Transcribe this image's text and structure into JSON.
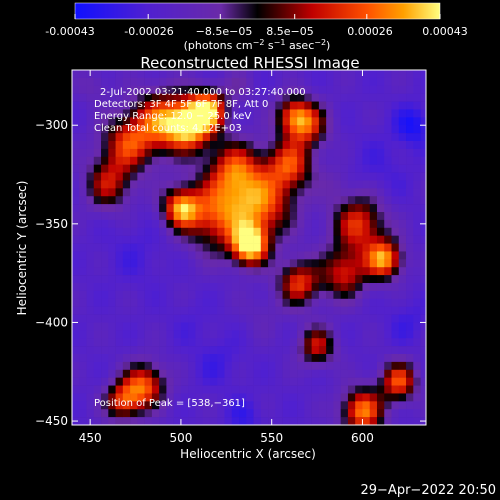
{
  "colorbar": {
    "ticks": [
      "-0.00043",
      "-0.00026",
      "−8.5e−05",
      "8.5e−05",
      "0.00026",
      "0.00043"
    ],
    "unit_main": "(photons cm",
    "unit_tail": " asec",
    "unit_sup1": "−2",
    "unit_s": " s",
    "unit_sup2": "−1",
    "unit_sup3": "−2",
    "unit_close": ")"
  },
  "annotations": {
    "time_range": "2-Jul-2002 03:21:40.000 to 03:27:40.000",
    "detectors": "Detectors: 3F 4F 5F 6F 7F 8F, Att 0",
    "energy": "Energy Range: 12.0 − 25.0 keV",
    "clean": "Clean     Total counts: 4.12E+03",
    "peak": "Position of Peak = [538,−361]"
  },
  "footer": {
    "timestamp": "29−Apr−2022 20:50"
  },
  "colors": {
    "background": "#000000",
    "text": "#ffffff",
    "lowest": "#1010ff",
    "highest": "#ffff80"
  },
  "chart_data": {
    "type": "heatmap",
    "title": "Reconstructed RHESSI Image",
    "xlabel": "Heliocentric X (arcsec)",
    "ylabel": "Heliocentric Y (arcsec)",
    "xlim": [
      440,
      635
    ],
    "ylim": [
      -452,
      -272
    ],
    "xticks": [
      450,
      500,
      550,
      600
    ],
    "yticks": [
      -300,
      -350,
      -400,
      -450
    ],
    "value_range": [
      -0.00043,
      0.00043
    ],
    "peak": {
      "x": 538,
      "y": -361
    },
    "grid": false,
    "blobs": [
      {
        "x": 538,
        "y": -361,
        "v": 0.00043,
        "r": 7
      },
      {
        "x": 545,
        "y": -340,
        "v": 0.00022,
        "r": 12
      },
      {
        "x": 520,
        "y": -345,
        "v": 0.00022,
        "r": 13
      },
      {
        "x": 505,
        "y": -300,
        "v": 0.00036,
        "r": 9
      },
      {
        "x": 515,
        "y": -292,
        "v": 0.0003,
        "r": 7
      },
      {
        "x": 488,
        "y": -298,
        "v": 0.00022,
        "r": 11
      },
      {
        "x": 470,
        "y": -310,
        "v": 0.00016,
        "r": 10
      },
      {
        "x": 460,
        "y": -330,
        "v": 0.00012,
        "r": 9
      },
      {
        "x": 500,
        "y": -342,
        "v": 0.00028,
        "r": 7
      },
      {
        "x": 530,
        "y": -322,
        "v": 0.00018,
        "r": 10
      },
      {
        "x": 560,
        "y": -320,
        "v": 0.0002,
        "r": 9
      },
      {
        "x": 562,
        "y": -295,
        "v": 0.00015,
        "r": 7
      },
      {
        "x": 598,
        "y": -350,
        "v": 0.0002,
        "r": 10
      },
      {
        "x": 612,
        "y": -368,
        "v": 0.00032,
        "r": 7
      },
      {
        "x": 590,
        "y": -375,
        "v": 0.00016,
        "r": 9
      },
      {
        "x": 565,
        "y": -380,
        "v": 0.0002,
        "r": 8
      },
      {
        "x": 575,
        "y": -412,
        "v": 0.00014,
        "r": 7
      },
      {
        "x": 600,
        "y": -445,
        "v": 0.0003,
        "r": 8
      },
      {
        "x": 620,
        "y": -430,
        "v": 0.00024,
        "r": 7
      },
      {
        "x": 480,
        "y": -432,
        "v": 0.00024,
        "r": 8
      },
      {
        "x": 468,
        "y": -440,
        "v": 0.00018,
        "r": 7
      },
      {
        "x": 570,
        "y": -300,
        "v": 0.00014,
        "r": 8
      },
      {
        "x": 628,
        "y": -300,
        "v": -0.0004,
        "r": 7
      },
      {
        "x": 610,
        "y": -322,
        "v": -0.00028,
        "r": 12
      },
      {
        "x": 475,
        "y": -365,
        "v": -0.00028,
        "r": 12
      },
      {
        "x": 455,
        "y": -395,
        "v": -0.00022,
        "r": 9
      },
      {
        "x": 520,
        "y": -420,
        "v": -0.0003,
        "r": 9
      },
      {
        "x": 505,
        "y": -400,
        "v": -0.00026,
        "r": 8
      },
      {
        "x": 535,
        "y": -448,
        "v": -0.00032,
        "r": 7
      },
      {
        "x": 585,
        "y": -398,
        "v": -0.00022,
        "r": 9
      },
      {
        "x": 625,
        "y": -400,
        "v": -0.0003,
        "r": 8
      },
      {
        "x": 545,
        "y": -395,
        "v": -0.00016,
        "r": 8
      },
      {
        "x": 585,
        "y": -330,
        "v": -0.00014,
        "r": 6
      },
      {
        "x": 532,
        "y": -280,
        "v": -0.00012,
        "r": 6
      },
      {
        "x": 452,
        "y": -280,
        "v": -0.00012,
        "r": 6
      }
    ]
  }
}
